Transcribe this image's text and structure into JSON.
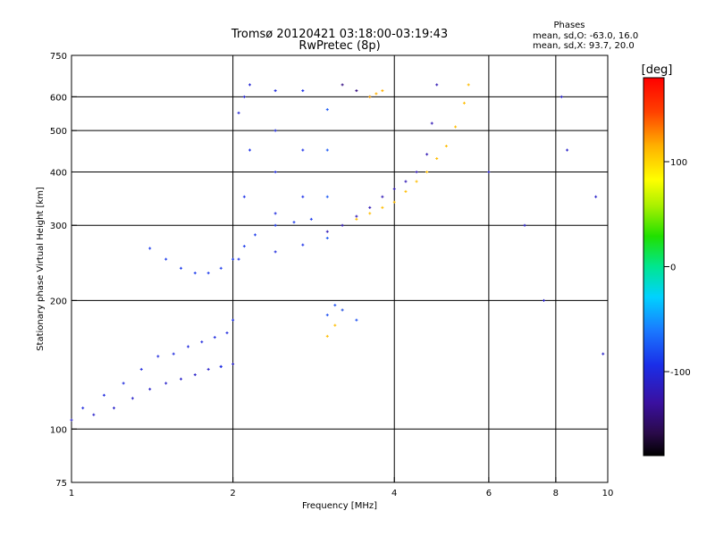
{
  "chart_data": {
    "type": "scatter",
    "title": "Tromsø 20120421 03:18:00-03:19:43",
    "subtitle": "RwPretec (8p)",
    "xlabel": "Frequency [MHz]",
    "ylabel": "Stationary phase Virtual Height [km]",
    "x_scale": "log",
    "y_scale": "log",
    "xlim": [
      1,
      10
    ],
    "ylim": [
      75,
      750
    ],
    "x_ticks": [
      {
        "value": 1,
        "label": "1"
      },
      {
        "value": 2,
        "label": "2"
      },
      {
        "value": 4,
        "label": "4"
      },
      {
        "value": 6,
        "label": "6"
      },
      {
        "value": 8,
        "label": "8"
      },
      {
        "value": 10,
        "label": "10"
      }
    ],
    "y_ticks": [
      {
        "value": 75,
        "label": "75"
      },
      {
        "value": 100,
        "label": "100"
      },
      {
        "value": 200,
        "label": "200"
      },
      {
        "value": 300,
        "label": "300"
      },
      {
        "value": 400,
        "label": "400"
      },
      {
        "value": 500,
        "label": "500"
      },
      {
        "value": 600,
        "label": "600"
      },
      {
        "value": 750,
        "label": "750"
      }
    ],
    "grid_x": [
      2,
      4,
      6,
      8
    ],
    "grid_y": [
      100,
      200,
      300,
      400,
      500,
      600
    ],
    "phases": {
      "heading": "Phases",
      "line_o": "mean, sd,O:  -63.0, 16.0",
      "line_x": "mean, sd,X:  93.7, 20.0"
    },
    "colorbar": {
      "label": "[deg]",
      "range": [
        -180,
        180
      ],
      "ticks": [
        {
          "value": 100,
          "label": "100"
        },
        {
          "value": 0,
          "label": "0"
        },
        {
          "value": -100,
          "label": "-100"
        }
      ],
      "colormap": "rainbow"
    },
    "series": [
      {
        "x": [
          1.0,
          1.1,
          1.2,
          1.3,
          1.4,
          1.5,
          1.6,
          1.7,
          1.8,
          1.9,
          2.0
        ],
        "y": [
          105,
          108,
          112,
          118,
          124,
          128,
          131,
          134,
          138,
          140,
          142
        ],
        "phase": -110
      },
      {
        "x": [
          1.05,
          1.15,
          1.25,
          1.35,
          1.45,
          1.55,
          1.65,
          1.75,
          1.85,
          1.95
        ],
        "y": [
          112,
          120,
          128,
          138,
          148,
          150,
          156,
          160,
          164,
          168
        ],
        "phase": -100
      },
      {
        "x": [
          1.4,
          1.5,
          1.6,
          1.7,
          1.8,
          1.9,
          2.0,
          2.1,
          2.2,
          2.4,
          2.6,
          2.8
        ],
        "y": [
          265,
          250,
          238,
          232,
          232,
          238,
          250,
          268,
          285,
          300,
          305,
          310
        ],
        "phase": -90
      },
      {
        "x": [
          1.9,
          2.0,
          2.05,
          2.1,
          2.15
        ],
        "y": [
          140,
          180,
          250,
          350,
          450
        ],
        "phase": -95
      },
      {
        "x": [
          2.05,
          2.1,
          2.15
        ],
        "y": [
          550,
          600,
          640
        ],
        "phase": -105
      },
      {
        "x": [
          2.4,
          2.4,
          2.4,
          2.4,
          2.4
        ],
        "y": [
          260,
          320,
          400,
          500,
          620
        ],
        "phase": -100
      },
      {
        "x": [
          2.7,
          2.7,
          2.7,
          2.7
        ],
        "y": [
          270,
          350,
          450,
          620
        ],
        "phase": -95
      },
      {
        "x": [
          3.0,
          3.0,
          3.0,
          3.0
        ],
        "y": [
          280,
          350,
          450,
          560
        ],
        "phase": -75
      },
      {
        "x": [
          3.0,
          3.2,
          3.4,
          3.6,
          3.8,
          4.0,
          4.2,
          4.4,
          4.6,
          4.7,
          4.8
        ],
        "y": [
          290,
          300,
          315,
          330,
          350,
          365,
          380,
          400,
          440,
          520,
          640
        ],
        "phase": -120
      },
      {
        "x": [
          3.2,
          3.4,
          3.6
        ],
        "y": [
          640,
          620,
          600
        ],
        "phase": -140
      },
      {
        "x": [
          3.4,
          3.6,
          3.8,
          4.0,
          4.2,
          4.4,
          4.6,
          4.8,
          5.0,
          5.2,
          5.4,
          5.5
        ],
        "y": [
          310,
          320,
          330,
          340,
          360,
          380,
          400,
          430,
          460,
          510,
          580,
          640
        ],
        "phase": 110
      },
      {
        "x": [
          3.6,
          3.7,
          3.8
        ],
        "y": [
          600,
          610,
          620
        ],
        "phase": 115
      },
      {
        "x": [
          3.0,
          3.1,
          3.2
        ],
        "y": [
          165,
          175,
          190
        ],
        "phase": 110
      },
      {
        "x": [
          3.0,
          3.1,
          3.2,
          3.4
        ],
        "y": [
          185,
          195,
          190,
          180
        ],
        "phase": -80
      },
      {
        "x": [
          6.0,
          7.0,
          7.6,
          8.2,
          8.4,
          9.5,
          9.8
        ],
        "y": [
          400,
          300,
          200,
          600,
          450,
          350,
          150
        ],
        "phase": -110
      }
    ]
  }
}
